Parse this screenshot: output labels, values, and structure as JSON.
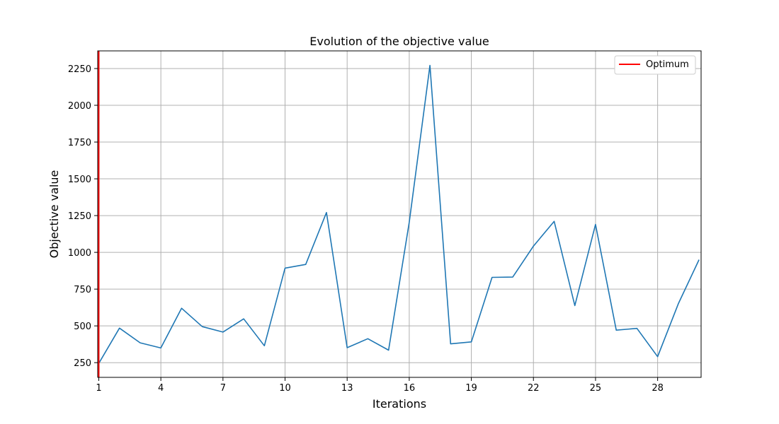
{
  "chart_data": {
    "type": "line",
    "title": "Evolution of the objective value",
    "xlabel": "Iterations",
    "ylabel": "Objective value",
    "xlim": [
      0.95,
      30.1
    ],
    "ylim": [
      150,
      2370
    ],
    "xticks": [
      1,
      4,
      7,
      10,
      13,
      16,
      19,
      22,
      25,
      28
    ],
    "yticks": [
      250,
      500,
      750,
      1000,
      1250,
      1500,
      1750,
      2000,
      2250
    ],
    "grid": true,
    "legend": {
      "placement": "top-right",
      "entries": [
        {
          "label": "Optimum",
          "color": "#ff0000"
        }
      ]
    },
    "series": [
      {
        "color": "#1f77b4",
        "x": [
          1,
          2,
          3,
          4,
          5,
          6,
          7,
          8,
          9,
          10,
          11,
          12,
          13,
          14,
          15,
          16,
          17,
          18,
          19,
          20,
          21,
          22,
          23,
          24,
          25,
          26,
          27,
          28,
          29,
          30
        ],
        "y": [
          245,
          485,
          385,
          350,
          620,
          495,
          458,
          548,
          365,
          893,
          918,
          1271,
          352,
          413,
          335,
          1205,
          2271,
          378,
          391,
          830,
          832,
          1043,
          1211,
          638,
          1190,
          471,
          483,
          291,
          650,
          950
        ]
      }
    ],
    "optimum": {
      "label": "Optimum",
      "x": 1,
      "color": "#ff0000"
    }
  }
}
